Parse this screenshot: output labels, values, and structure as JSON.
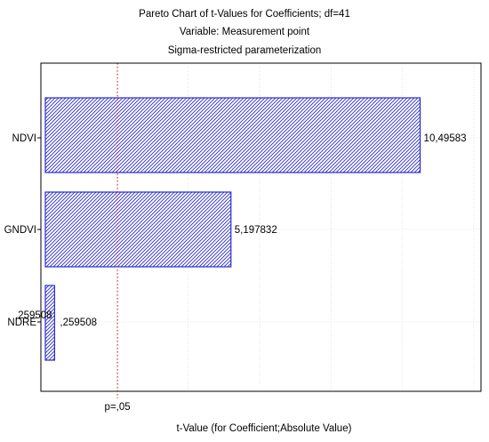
{
  "chart_data": {
    "type": "bar",
    "orientation": "horizontal",
    "title": "Pareto Chart of t-Values for Coefficients; df=41",
    "subtitle_1": "Variable: Measurement point",
    "subtitle_2": "Sigma-restricted parameterization",
    "categories": [
      "NDVI",
      "GNDVI",
      "NDRE"
    ],
    "values": [
      10.49583,
      5.197832,
      0.259508
    ],
    "value_labels": [
      "10,49583",
      "5,197832",
      ",259508"
    ],
    "overlay_label": ",259508",
    "xlabel": "t-Value (for Coefficient;Absolute Value)",
    "ylabel": "",
    "xlim": [
      0,
      12.2
    ],
    "reference_line": {
      "value": 2.019541,
      "label": "p=,05",
      "color": "#e0202a"
    },
    "bar_fill_color": "#3a3ad6",
    "bar_stroke_color": "#2b2bd0",
    "bar_pattern": "diagonal-hatch",
    "grid": true,
    "legend": "none"
  }
}
